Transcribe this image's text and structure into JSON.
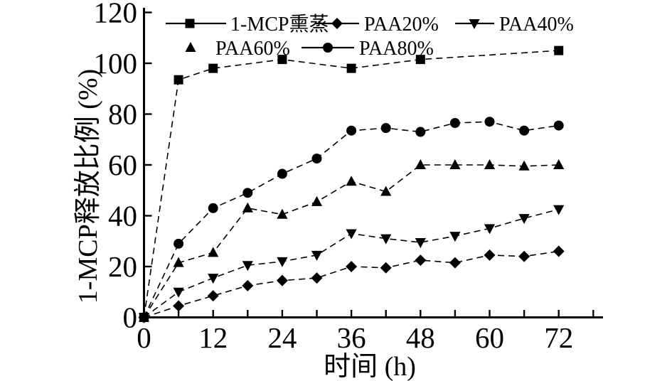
{
  "chart_data": {
    "type": "line",
    "title": "",
    "xlabel": "时间 (h)",
    "ylabel": "1-MCP释放比例 (%)",
    "xlim": [
      0,
      79.5
    ],
    "ylim": [
      0,
      121
    ],
    "x_ticks": [
      0,
      6,
      12,
      18,
      24,
      30,
      36,
      42,
      48,
      54,
      60,
      66,
      72,
      78
    ],
    "x_labeled_ticks": [
      0,
      12,
      24,
      36,
      48,
      60,
      72
    ],
    "y_ticks": [
      0,
      20,
      40,
      60,
      80,
      100,
      120
    ],
    "grid": false,
    "line_color": "#000000",
    "line_style": "dashed",
    "legend_position": "top-left-inside",
    "legend_order": [
      "1-MCP熏蒸",
      "PAA20%",
      "PAA40%",
      "PAA60%",
      "PAA80%"
    ],
    "series": [
      {
        "name": "1-MCP熏蒸",
        "marker": "square",
        "legend_line": true,
        "x": [
          0,
          6,
          12,
          24,
          36,
          48,
          72
        ],
        "y": [
          0,
          93.5,
          98,
          101.5,
          98,
          101.5,
          105
        ]
      },
      {
        "name": "PAA20%",
        "marker": "diamond",
        "legend_line": true,
        "x": [
          0,
          6,
          12,
          18,
          24,
          30,
          36,
          42,
          48,
          54,
          60,
          66,
          72
        ],
        "y": [
          0,
          4.5,
          8.5,
          12.5,
          14.5,
          15.5,
          20,
          19.5,
          22.5,
          21.5,
          24.5,
          24,
          26
        ]
      },
      {
        "name": "PAA40%",
        "marker": "triangle-down",
        "legend_line": true,
        "x": [
          0,
          6,
          12,
          18,
          24,
          30,
          36,
          42,
          48,
          54,
          60,
          66,
          72
        ],
        "y": [
          0,
          10,
          15.5,
          20.5,
          22,
          24.5,
          33,
          31,
          29.5,
          32,
          35,
          39,
          42.5
        ]
      },
      {
        "name": "PAA60%",
        "marker": "triangle-up",
        "legend_line": false,
        "x": [
          0,
          6,
          12,
          18,
          24,
          30,
          36,
          42,
          48,
          54,
          60,
          66,
          72
        ],
        "y": [
          0,
          21.5,
          25.5,
          43,
          40.5,
          45.5,
          53.5,
          49.5,
          60,
          60,
          60,
          59.5,
          60
        ]
      },
      {
        "name": "PAA80%",
        "marker": "circle",
        "legend_line": true,
        "x": [
          0,
          6,
          12,
          18,
          24,
          30,
          36,
          42,
          48,
          54,
          60,
          66,
          72
        ],
        "y": [
          0,
          29,
          43,
          49,
          56.5,
          62.5,
          73.5,
          74.5,
          73,
          76.5,
          77,
          73.5,
          75.5
        ]
      }
    ]
  }
}
